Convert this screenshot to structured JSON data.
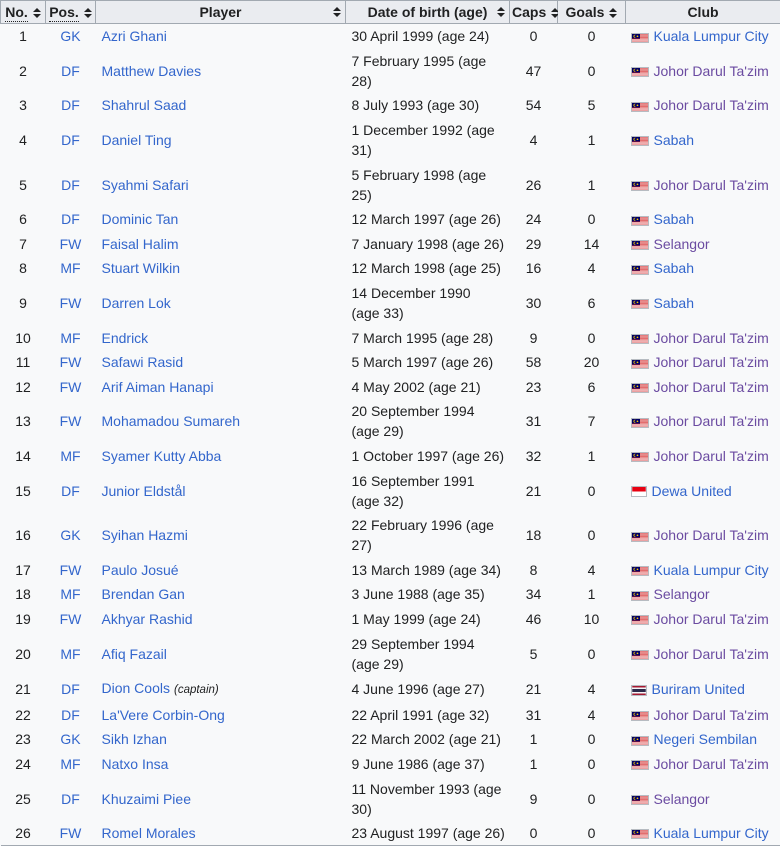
{
  "colors": {
    "link_blue": "#3366cc",
    "link_visited_purple": "#6b4ba1",
    "header_background": "#eaecf0",
    "table_background": "#f8f9fa",
    "border_gray": "#a2a9b1",
    "text": "#202122",
    "flag_malaysia": [
      "#cc0001",
      "#ffffff",
      "#010066",
      "#ffcc00"
    ],
    "flag_indonesia": [
      "#e70011",
      "#ffffff"
    ],
    "flag_thailand": [
      "#a51931",
      "#f4f5f8",
      "#2d2a4a"
    ]
  },
  "table": {
    "columns": [
      {
        "label": "No.",
        "sortable": true,
        "abbr": true
      },
      {
        "label": "Pos.",
        "sortable": true,
        "abbr": true
      },
      {
        "label": "Player",
        "sortable": true
      },
      {
        "label": "Date of birth (age)",
        "sortable": true
      },
      {
        "label": "Caps",
        "sortable": true
      },
      {
        "label": "Goals",
        "sortable": true
      },
      {
        "label": "Club",
        "sortable": false
      }
    ],
    "rows": [
      {
        "no": "1",
        "pos": "GK",
        "player": "Azri Ghani",
        "note": "",
        "dob_lines": [
          "30 April 1999 (age 24)"
        ],
        "caps": "0",
        "goals": "0",
        "club": "Kuala Lumpur City",
        "flag": "malaysia",
        "club_visited": false
      },
      {
        "no": "2",
        "pos": "DF",
        "player": "Matthew Davies",
        "note": "",
        "dob_lines": [
          "7 February 1995 (age 28)"
        ],
        "caps": "47",
        "goals": "0",
        "club": "Johor Darul Ta'zim",
        "flag": "malaysia",
        "club_visited": true
      },
      {
        "no": "3",
        "pos": "DF",
        "player": "Shahrul Saad",
        "note": "",
        "dob_lines": [
          "8 July 1993 (age 30)"
        ],
        "caps": "54",
        "goals": "5",
        "club": "Johor Darul Ta'zim",
        "flag": "malaysia",
        "club_visited": true
      },
      {
        "no": "4",
        "pos": "DF",
        "player": "Daniel Ting",
        "note": "",
        "dob_lines": [
          "1 December 1992 (age 31)"
        ],
        "caps": "4",
        "goals": "1",
        "club": "Sabah",
        "flag": "malaysia",
        "club_visited": false
      },
      {
        "no": "5",
        "pos": "DF",
        "player": "Syahmi Safari",
        "note": "",
        "dob_lines": [
          "5 February 1998 (age 25)"
        ],
        "caps": "26",
        "goals": "1",
        "club": "Johor Darul Ta'zim",
        "flag": "malaysia",
        "club_visited": true
      },
      {
        "no": "6",
        "pos": "DF",
        "player": "Dominic Tan",
        "note": "",
        "dob_lines": [
          "12 March 1997 (age 26)"
        ],
        "caps": "24",
        "goals": "0",
        "club": "Sabah",
        "flag": "malaysia",
        "club_visited": false
      },
      {
        "no": "7",
        "pos": "FW",
        "player": "Faisal Halim",
        "note": "",
        "dob_lines": [
          "7 January 1998 (age 26)"
        ],
        "caps": "29",
        "goals": "14",
        "club": "Selangor",
        "flag": "malaysia",
        "club_visited": true
      },
      {
        "no": "8",
        "pos": "MF",
        "player": "Stuart Wilkin",
        "note": "",
        "dob_lines": [
          "12 March 1998 (age 25)"
        ],
        "caps": "16",
        "goals": "4",
        "club": "Sabah",
        "flag": "malaysia",
        "club_visited": false
      },
      {
        "no": "9",
        "pos": "FW",
        "player": "Darren Lok",
        "note": "",
        "dob_lines": [
          "14 December 1990",
          "(age 33)"
        ],
        "caps": "30",
        "goals": "6",
        "club": "Sabah",
        "flag": "malaysia",
        "club_visited": false
      },
      {
        "no": "10",
        "pos": "MF",
        "player": "Endrick",
        "note": "",
        "dob_lines": [
          "7 March 1995 (age 28)"
        ],
        "caps": "9",
        "goals": "0",
        "club": "Johor Darul Ta'zim",
        "flag": "malaysia",
        "club_visited": true
      },
      {
        "no": "11",
        "pos": "FW",
        "player": "Safawi Rasid",
        "note": "",
        "dob_lines": [
          "5 March 1997 (age 26)"
        ],
        "caps": "58",
        "goals": "20",
        "club": "Johor Darul Ta'zim",
        "flag": "malaysia",
        "club_visited": true
      },
      {
        "no": "12",
        "pos": "FW",
        "player": "Arif Aiman Hanapi",
        "note": "",
        "dob_lines": [
          "4 May 2002 (age 21)"
        ],
        "caps": "23",
        "goals": "6",
        "club": "Johor Darul Ta'zim",
        "flag": "malaysia",
        "club_visited": true
      },
      {
        "no": "13",
        "pos": "FW",
        "player": "Mohamadou Sumareh",
        "note": "",
        "dob_lines": [
          "20 September 1994",
          "(age 29)"
        ],
        "caps": "31",
        "goals": "7",
        "club": "Johor Darul Ta'zim",
        "flag": "malaysia",
        "club_visited": true
      },
      {
        "no": "14",
        "pos": "MF",
        "player": "Syamer Kutty Abba",
        "note": "",
        "dob_lines": [
          "1 October 1997 (age 26)"
        ],
        "caps": "32",
        "goals": "1",
        "club": "Johor Darul Ta'zim",
        "flag": "malaysia",
        "club_visited": true
      },
      {
        "no": "15",
        "pos": "DF",
        "player": "Junior Eldstål",
        "note": "",
        "dob_lines": [
          "16 September 1991",
          "(age 32)"
        ],
        "caps": "21",
        "goals": "0",
        "club": "Dewa United",
        "flag": "indonesia",
        "club_visited": false
      },
      {
        "no": "16",
        "pos": "GK",
        "player": "Syihan Hazmi",
        "note": "",
        "dob_lines": [
          "22 February 1996 (age 27)"
        ],
        "caps": "18",
        "goals": "0",
        "club": "Johor Darul Ta'zim",
        "flag": "malaysia",
        "club_visited": true
      },
      {
        "no": "17",
        "pos": "FW",
        "player": "Paulo Josué",
        "note": "",
        "dob_lines": [
          "13 March 1989 (age 34)"
        ],
        "caps": "8",
        "goals": "4",
        "club": "Kuala Lumpur City",
        "flag": "malaysia",
        "club_visited": false
      },
      {
        "no": "18",
        "pos": "MF",
        "player": "Brendan Gan",
        "note": "",
        "dob_lines": [
          "3 June 1988 (age 35)"
        ],
        "caps": "34",
        "goals": "1",
        "club": "Selangor",
        "flag": "malaysia",
        "club_visited": true
      },
      {
        "no": "19",
        "pos": "FW",
        "player": "Akhyar Rashid",
        "note": "",
        "dob_lines": [
          "1 May 1999 (age 24)"
        ],
        "caps": "46",
        "goals": "10",
        "club": "Johor Darul Ta'zim",
        "flag": "malaysia",
        "club_visited": true
      },
      {
        "no": "20",
        "pos": "MF",
        "player": "Afiq Fazail",
        "note": "",
        "dob_lines": [
          "29 September 1994",
          "(age 29)"
        ],
        "caps": "5",
        "goals": "0",
        "club": "Johor Darul Ta'zim",
        "flag": "malaysia",
        "club_visited": true
      },
      {
        "no": "21",
        "pos": "DF",
        "player": "Dion Cools",
        "note": "(captain)",
        "dob_lines": [
          "4 June 1996 (age 27)"
        ],
        "caps": "21",
        "goals": "4",
        "club": "Buriram United",
        "flag": "thailand",
        "club_visited": false
      },
      {
        "no": "22",
        "pos": "DF",
        "player": "La'Vere Corbin-Ong",
        "note": "",
        "dob_lines": [
          "22 April 1991 (age 32)"
        ],
        "caps": "31",
        "goals": "4",
        "club": "Johor Darul Ta'zim",
        "flag": "malaysia",
        "club_visited": true
      },
      {
        "no": "23",
        "pos": "GK",
        "player": "Sikh Izhan",
        "note": "",
        "dob_lines": [
          "22 March 2002 (age 21)"
        ],
        "caps": "1",
        "goals": "0",
        "club": "Negeri Sembilan",
        "flag": "malaysia",
        "club_visited": false
      },
      {
        "no": "24",
        "pos": "MF",
        "player": "Natxo Insa",
        "note": "",
        "dob_lines": [
          "9 June 1986 (age 37)"
        ],
        "caps": "1",
        "goals": "0",
        "club": "Johor Darul Ta'zim",
        "flag": "malaysia",
        "club_visited": true
      },
      {
        "no": "25",
        "pos": "DF",
        "player": "Khuzaimi Piee",
        "note": "",
        "dob_lines": [
          "11 November 1993 (age 30)"
        ],
        "caps": "9",
        "goals": "0",
        "club": "Selangor",
        "flag": "malaysia",
        "club_visited": true
      },
      {
        "no": "26",
        "pos": "FW",
        "player": "Romel Morales",
        "note": "",
        "dob_lines": [
          "23 August 1997 (age 26)"
        ],
        "caps": "0",
        "goals": "0",
        "club": "Kuala Lumpur City",
        "flag": "malaysia",
        "club_visited": false
      }
    ]
  }
}
